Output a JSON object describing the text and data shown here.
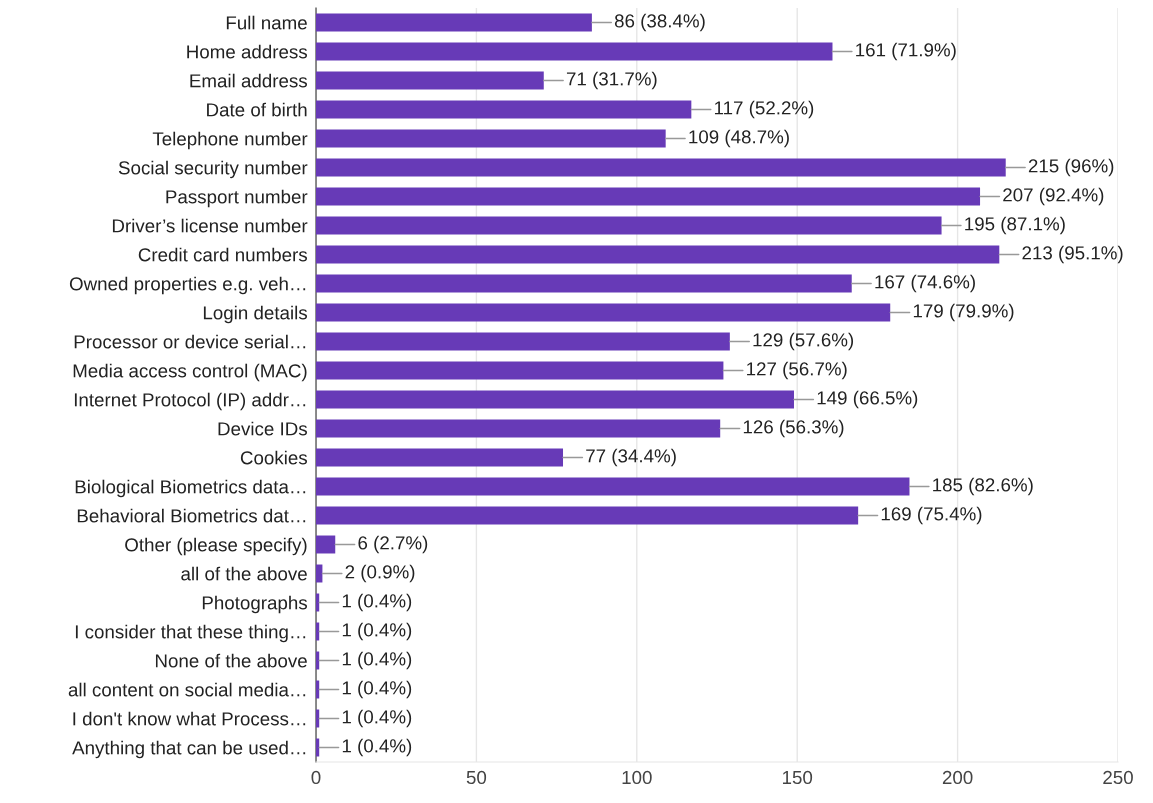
{
  "chart_data": {
    "type": "bar",
    "orientation": "horizontal",
    "color": "#673ab7",
    "grid": "x",
    "xlim": [
      0,
      250
    ],
    "xticks": [
      0,
      50,
      100,
      150,
      200,
      250
    ],
    "categories": [
      "Full name",
      "Home address",
      "Email address",
      "Date of birth",
      "Telephone number",
      "Social security number",
      "Passport number",
      "Driver’s license number",
      "Credit card numbers",
      "Owned properties e.g. veh…",
      "Login details",
      "Processor or device serial…",
      "Media access control (MAC)",
      "Internet Protocol (IP) addr…",
      "Device IDs",
      "Cookies",
      "Biological Biometrics data…",
      "Behavioral Biometrics dat…",
      "Other (please specify)",
      "all of the above",
      "Photographs",
      "I consider that these thing…",
      "None of the above",
      "all content on social media…",
      "I don't know what Process…",
      "Anything that can be used…"
    ],
    "values": [
      86,
      161,
      71,
      117,
      109,
      215,
      207,
      195,
      213,
      167,
      179,
      129,
      127,
      149,
      126,
      77,
      185,
      169,
      6,
      2,
      1,
      1,
      1,
      1,
      1,
      1
    ],
    "value_labels": [
      "86 (38.4%)",
      "161 (71.9%)",
      "71 (31.7%)",
      "117 (52.2%)",
      "109 (48.7%)",
      "215 (96%)",
      "207 (92.4%)",
      "195 (87.1%)",
      "213 (95.1%)",
      "167 (74.6%)",
      "179 (79.9%)",
      "129 (57.6%)",
      "127 (56.7%)",
      "149 (66.5%)",
      "126 (56.3%)",
      "77 (34.4%)",
      "185 (82.6%)",
      "169 (75.4%)",
      "6 (2.7%)",
      "2 (0.9%)",
      "1 (0.4%)",
      "1 (0.4%)",
      "1 (0.4%)",
      "1 (0.4%)",
      "1 (0.4%)",
      "1 (0.4%)"
    ]
  }
}
